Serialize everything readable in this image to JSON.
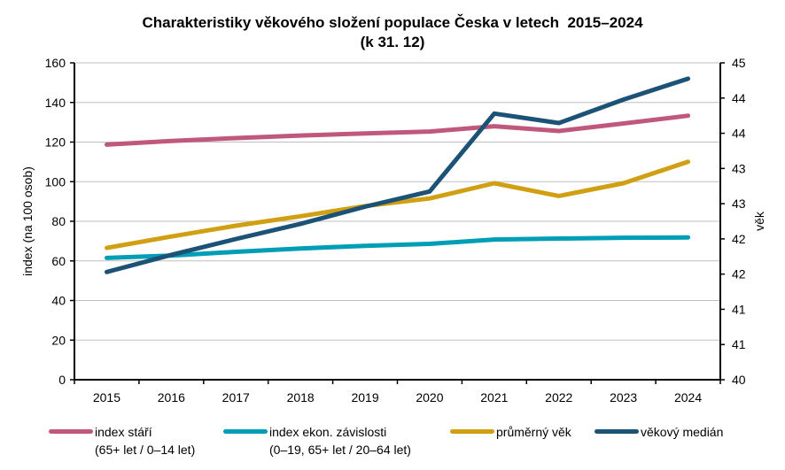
{
  "chart_data": {
    "type": "line",
    "title": "Charakteristiky věkového složení populace Česka v letech  2015–2024",
    "subtitle": "(k 31. 12)",
    "xlabel": "",
    "ylabel": "index (na 100 osob)",
    "ylabel_right": "věk",
    "ylim": [
      0,
      160
    ],
    "ylim_right": [
      40,
      45
    ],
    "yticks": [
      "0",
      "20",
      "40",
      "60",
      "80",
      "100",
      "120",
      "140",
      "160"
    ],
    "yticks_right": [
      "40",
      "41",
      "41",
      "42",
      "42",
      "43",
      "43",
      "44",
      "44",
      "45"
    ],
    "grid": true,
    "legend_position": "bottom",
    "categories": [
      "2015",
      "2016",
      "2017",
      "2018",
      "2019",
      "2020",
      "2021",
      "2022",
      "2023",
      "2024"
    ],
    "series": [
      {
        "name": "index stáří",
        "name_line2": "(65+ let / 0–14 let)",
        "axis": "left",
        "color": "#C0587E",
        "values": [
          118.7,
          120.6,
          122.0,
          123.3,
          124.4,
          125.3,
          128.0,
          125.6,
          129.4,
          133.3
        ]
      },
      {
        "name": "index ekon. závislosti",
        "name_line2": "(0–19, 65+ let / 20–64 let)",
        "axis": "left",
        "color": "#009DB7",
        "values": [
          61.5,
          62.7,
          64.6,
          66.3,
          67.6,
          68.6,
          70.8,
          71.3,
          71.7,
          71.8
        ]
      },
      {
        "name": "průměrný věk",
        "name_line2": "",
        "axis": "right",
        "color": "#D19F12",
        "values": [
          42.08,
          42.26,
          42.43,
          42.58,
          42.74,
          42.86,
          43.1,
          42.9,
          43.1,
          43.44
        ]
      },
      {
        "name": "věkový medián",
        "name_line2": "",
        "axis": "right",
        "color": "#1B5276",
        "values": [
          41.7,
          41.97,
          42.22,
          42.46,
          42.73,
          42.97,
          44.2,
          44.05,
          44.42,
          44.75
        ]
      }
    ]
  }
}
